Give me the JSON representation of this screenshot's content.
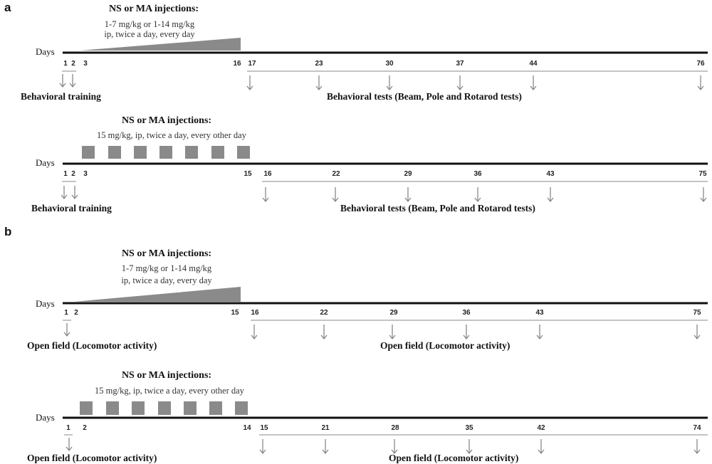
{
  "colors": {
    "axis": "#111111",
    "marker": "#8a8a8a",
    "arrow": "#888888"
  },
  "panels": [
    {
      "label": "a"
    },
    {
      "label": "b"
    }
  ],
  "rows": [
    {
      "title": "NS or MA injections:",
      "dose_lines": [
        "1-7 mg/kg or 1-14 mg/kg",
        "ip, twice a day, every day"
      ],
      "days_label": "Days",
      "schedule": "ramp",
      "ticks": [
        "1",
        "2",
        "3",
        "16",
        "17",
        "23",
        "30",
        "37",
        "44",
        "76"
      ],
      "left_label": "Behavioral training",
      "right_label": "Behavioral tests (Beam, Pole and Rotarod tests)"
    },
    {
      "title": "NS or MA injections:",
      "dose_lines": [
        "15 mg/kg, ip, twice a day,  every  other day"
      ],
      "days_label": "Days",
      "schedule": "squares",
      "ticks": [
        "1",
        "2",
        "3",
        "15",
        "16",
        "22",
        "29",
        "36",
        "43",
        "75"
      ],
      "left_label": "Behavioral training",
      "right_label": "Behavioral tests (Beam, Pole and Rotarod tests)"
    },
    {
      "title": "NS or MA injections:",
      "dose_lines": [
        "1-7 mg/kg or 1-14 mg/kg",
        "ip, twice a day, every day"
      ],
      "days_label": "Days",
      "schedule": "ramp",
      "ticks": [
        "1",
        "2",
        "15",
        "16",
        "22",
        "29",
        "36",
        "43",
        "75"
      ],
      "left_label": "Open field (Locomotor activity)",
      "right_label": "Open field (Locomotor activity)"
    },
    {
      "title": "NS or MA injections:",
      "dose_lines": [
        "15 mg/kg, ip, twice a day, every other day"
      ],
      "days_label": "Days",
      "schedule": "squares",
      "ticks": [
        "1",
        "2",
        "14",
        "15",
        "21",
        "28",
        "35",
        "42",
        "74"
      ],
      "left_label": "Open field (Locomotor activity)",
      "right_label": "Open field (Locomotor activity)"
    }
  ]
}
